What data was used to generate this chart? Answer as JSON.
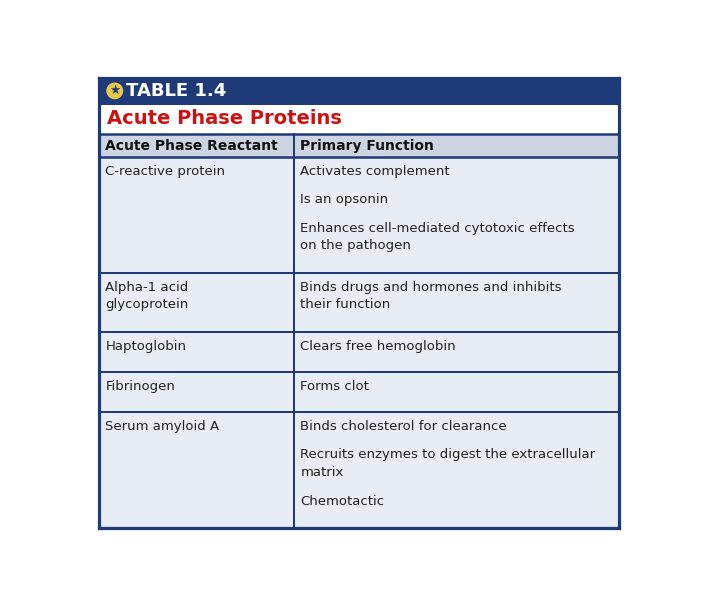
{
  "table_title": "TABLE 1.4",
  "subtitle": "Acute Phase Proteins",
  "col_headers": [
    "Acute Phase Reactant",
    "Primary Function"
  ],
  "rows": [
    {
      "reactant": "C-reactive protein",
      "functions": [
        "Activates complement",
        "Is an opsonin",
        "Enhances cell-mediated cytotoxic effects\non the pathogen"
      ]
    },
    {
      "reactant": "Alpha-1 acid\nglycoprotein",
      "functions": [
        "Binds drugs and hormones and inhibits\ntheir function"
      ]
    },
    {
      "reactant": "Haptoglobin",
      "functions": [
        "Clears free hemoglobin"
      ]
    },
    {
      "reactant": "Fibrinogen",
      "functions": [
        "Forms clot"
      ]
    },
    {
      "reactant": "Serum amyloid A",
      "functions": [
        "Binds cholesterol for clearance",
        "Recruits enzymes to digest the extracellular\nmatrix",
        "Chemotactic"
      ]
    }
  ],
  "header_bg": "#cdd5e3",
  "row_bg": "#e8ecf4",
  "title_bar_bg": "#1e3a78",
  "title_text_color": "#ffffff",
  "subtitle_color": "#cc1111",
  "border_color": "#1e3a78",
  "header_text_color": "#111111",
  "body_text_color": "#222222",
  "outer_bg": "#ffffff",
  "star_color": "#e8c84a"
}
